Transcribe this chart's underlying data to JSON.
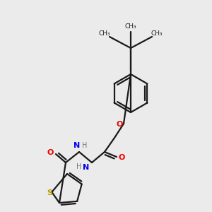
{
  "bg_color": "#ebebeb",
  "bond_color": "#1a1a1a",
  "S_color": "#b8a000",
  "N_color": "#0000ee",
  "O_color": "#ee0000",
  "H_color": "#777777",
  "lw": 1.6,
  "figsize": [
    3.0,
    3.0
  ],
  "dpi": 100,
  "xlim": [
    0,
    300
  ],
  "ylim": [
    0,
    300
  ]
}
